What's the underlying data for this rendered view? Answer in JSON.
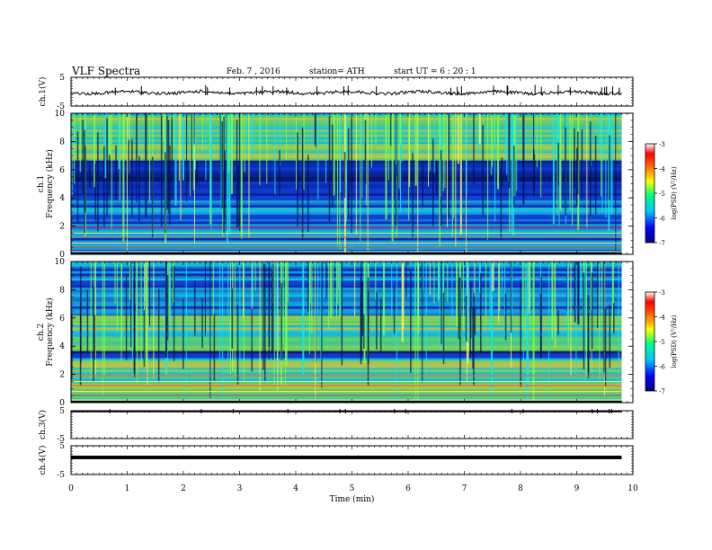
{
  "header": {
    "title": "VLF  Spectra",
    "date": "Feb. 7  , 2016",
    "station": "station= ATH",
    "start": "start  UT =   6  : 20 : 1"
  },
  "colors": {
    "spectrogram_background": "#0b2fb8",
    "spectrogram_low": "#05125e",
    "spectrogram_mid": "#19e6e6",
    "spectrogram_high": "#7cff4a",
    "trace": "#000000"
  },
  "chart_data": [
    {
      "type": "line",
      "panel": "ch.1(V)",
      "ylabel": "ch.1(V)",
      "yticks": [
        "5",
        "-5"
      ],
      "ylim": [
        -5,
        5
      ],
      "series": [
        {
          "values_description_level": 0.0
        }
      ]
    },
    {
      "type": "heatmap",
      "panel": "ch.1 spectrogram",
      "ylabel": "ch.1\nFrequency  (kHz)",
      "ylabel_line1": "ch.1",
      "ylabel_line2": "Frequency  (kHz)",
      "yticks": [
        "0",
        "2",
        "4",
        "6",
        "8",
        "10"
      ],
      "ylim": [
        0,
        10
      ],
      "colorbar": {
        "label": "log(PSD) (V²/Hz)",
        "ticks": [
          "-3",
          "-4",
          "-5",
          "-6",
          "-7"
        ],
        "range": [
          -7,
          -3
        ]
      }
    },
    {
      "type": "heatmap",
      "panel": "ch.2 spectrogram",
      "ylabel_line1": "ch.2",
      "ylabel_line2": "Frequency  (kHz)",
      "yticks": [
        "0",
        "2",
        "4",
        "6",
        "8",
        "10"
      ],
      "ylim": [
        0,
        10
      ],
      "colorbar": {
        "label": "log(PSD) (V²/Hz)",
        "ticks": [
          "-3",
          "-4",
          "-5",
          "-6",
          "-7"
        ],
        "range": [
          -7,
          -3
        ]
      }
    },
    {
      "type": "line",
      "panel": "ch.3(V)",
      "ylabel": "ch.3(V)",
      "yticks": [
        "5",
        "-5"
      ],
      "ylim": [
        -5,
        5
      ]
    },
    {
      "type": "line",
      "panel": "ch.4(V)",
      "ylabel": "ch.4(V)",
      "yticks": [
        "5",
        "-5"
      ],
      "ylim": [
        -5,
        5
      ]
    }
  ],
  "xaxis": {
    "label": "Time  (min)",
    "ticks": [
      "0",
      "1",
      "2",
      "3",
      "4",
      "5",
      "6",
      "7",
      "8",
      "9",
      "10"
    ],
    "xlim": [
      0,
      10
    ],
    "data_end": 9.8
  }
}
